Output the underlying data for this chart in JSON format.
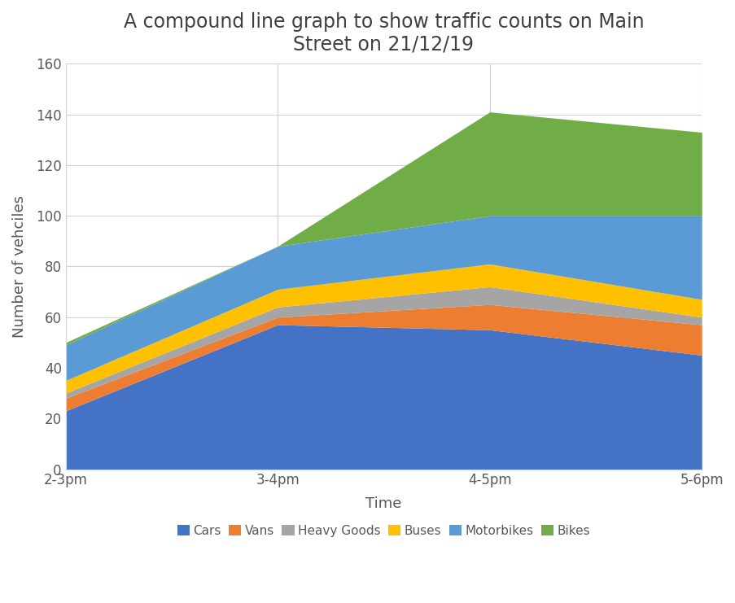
{
  "title": "A compound line graph to show traffic counts on Main\nStreet on 21/12/19",
  "xlabel": "Time",
  "ylabel": "Nu​mber of vehciles",
  "x_labels": [
    "2-3pm",
    "3-4pm",
    "4-5pm",
    "5-6pm"
  ],
  "series": {
    "Cars": [
      23,
      57,
      55,
      45
    ],
    "Vans": [
      5,
      3,
      10,
      12
    ],
    "Heavy Goods": [
      2,
      4,
      7,
      3
    ],
    "Buses": [
      5,
      7,
      9,
      7
    ],
    "Motorbikes": [
      14,
      17,
      19,
      33
    ],
    "Bikes": [
      1,
      0,
      41,
      33
    ]
  },
  "colors": {
    "Cars": "#4472C4",
    "Vans": "#ED7D31",
    "Heavy Goods": "#A5A5A5",
    "Buses": "#FFC000",
    "Motorbikes": "#5B9BD5",
    "Bikes": "#70AD47"
  },
  "ylim": [
    0,
    160
  ],
  "yticks": [
    0,
    20,
    40,
    60,
    80,
    100,
    120,
    140,
    160
  ],
  "background_color": "#FFFFFF",
  "grid_color": "#D3D3D3",
  "title_fontsize": 17,
  "label_fontsize": 13,
  "tick_fontsize": 12,
  "legend_fontsize": 11,
  "title_color": "#404040",
  "tick_color": "#595959",
  "axis_label_color": "#595959"
}
